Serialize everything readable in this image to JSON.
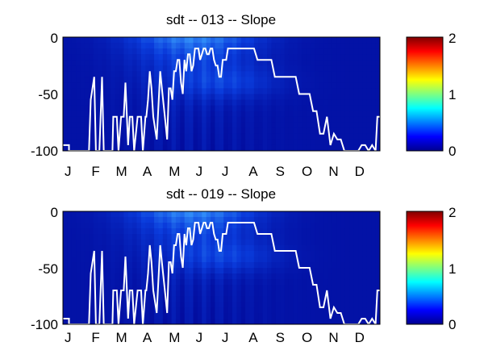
{
  "chart_data": [
    {
      "type": "heatmap",
      "title": "sdt -- 013 -- Slope",
      "x_tick_labels": [
        "J",
        "F",
        "M",
        "A",
        "M",
        "J",
        "J",
        "A",
        "S",
        "O",
        "N",
        "D"
      ],
      "y_tick_labels": [
        "0",
        "-50",
        "-100"
      ],
      "ylim": [
        -100,
        0
      ],
      "colorbar": {
        "range": [
          0,
          2
        ],
        "tick_labels": [
          "2",
          "1",
          "0"
        ],
        "colormap": "jet"
      },
      "grid": false,
      "line_series": {
        "color": "#ffffff",
        "days": [
          0,
          7,
          7,
          30,
          32,
          36,
          38,
          42,
          45,
          47,
          50,
          52,
          57,
          58,
          62,
          64,
          67,
          70,
          72,
          75,
          77,
          80,
          82,
          86,
          90,
          92,
          95,
          96,
          98,
          100,
          102,
          104,
          108,
          112,
          114,
          118,
          120,
          122,
          124,
          126,
          128,
          130,
          132,
          134,
          136,
          138,
          140,
          142,
          144,
          146,
          148,
          150,
          152,
          154,
          156,
          158,
          160,
          162,
          164,
          166,
          168,
          170,
          172,
          174,
          176,
          178,
          180,
          182,
          184,
          186,
          188,
          190,
          192,
          196,
          200,
          204,
          208,
          212,
          216,
          220,
          224,
          228,
          232,
          236,
          240,
          244,
          248,
          252,
          256,
          260,
          264,
          268,
          272,
          276,
          280,
          284,
          288,
          292,
          296,
          300,
          304,
          308,
          312,
          316,
          320,
          324,
          328,
          332,
          336,
          340,
          344,
          348,
          352,
          356,
          360,
          362,
          365
        ],
        "values": [
          -95,
          -95,
          -100,
          -100,
          -55,
          -35,
          -100,
          -100,
          -35,
          -100,
          -100,
          -100,
          -100,
          -70,
          -70,
          -100,
          -70,
          -70,
          -40,
          -95,
          -70,
          -70,
          -100,
          -70,
          -70,
          -100,
          -70,
          -70,
          -55,
          -30,
          -45,
          -70,
          -90,
          -30,
          -45,
          -75,
          -90,
          -45,
          -45,
          -55,
          -30,
          -30,
          -20,
          -20,
          -40,
          -50,
          -20,
          -30,
          -15,
          -15,
          -30,
          -25,
          -10,
          -10,
          -10,
          -20,
          -15,
          -10,
          -10,
          -15,
          -15,
          -10,
          -10,
          -20,
          -25,
          -25,
          -35,
          -35,
          -20,
          -20,
          -20,
          -10,
          -10,
          -10,
          -10,
          -10,
          -10,
          -10,
          -10,
          -10,
          -20,
          -20,
          -20,
          -20,
          -20,
          -35,
          -35,
          -35,
          -35,
          -35,
          -35,
          -35,
          -50,
          -50,
          -50,
          -50,
          -65,
          -65,
          -85,
          -85,
          -70,
          -95,
          -85,
          -90,
          -90,
          -100,
          -100,
          -100,
          -100,
          -100,
          -95,
          -95,
          -100,
          -95,
          -100,
          -70,
          -70
        ]
      }
    },
    {
      "type": "heatmap",
      "title": "sdt -- 019 -- Slope",
      "x_tick_labels": [
        "J",
        "F",
        "M",
        "A",
        "M",
        "J",
        "J",
        "A",
        "S",
        "O",
        "N",
        "D"
      ],
      "y_tick_labels": [
        "0",
        "-50",
        "-100"
      ],
      "ylim": [
        -100,
        0
      ],
      "colorbar": {
        "range": [
          0,
          2
        ],
        "tick_labels": [
          "2",
          "1",
          "0"
        ],
        "colormap": "jet"
      },
      "grid": false,
      "line_series": {
        "color": "#ffffff",
        "days": [
          0,
          7,
          7,
          30,
          32,
          36,
          38,
          42,
          45,
          47,
          50,
          52,
          57,
          58,
          62,
          64,
          67,
          70,
          72,
          75,
          77,
          80,
          82,
          86,
          90,
          92,
          95,
          96,
          98,
          100,
          102,
          104,
          108,
          112,
          114,
          118,
          120,
          122,
          124,
          126,
          128,
          130,
          132,
          134,
          136,
          138,
          140,
          142,
          144,
          146,
          148,
          150,
          152,
          154,
          156,
          158,
          160,
          162,
          164,
          166,
          168,
          170,
          172,
          174,
          176,
          178,
          180,
          182,
          184,
          186,
          188,
          190,
          192,
          196,
          200,
          204,
          208,
          212,
          216,
          220,
          224,
          228,
          232,
          236,
          240,
          244,
          248,
          252,
          256,
          260,
          264,
          268,
          272,
          276,
          280,
          284,
          288,
          292,
          296,
          300,
          304,
          308,
          312,
          316,
          320,
          324,
          328,
          332,
          336,
          340,
          344,
          348,
          352,
          356,
          360,
          362,
          365
        ],
        "values": [
          -95,
          -95,
          -100,
          -100,
          -55,
          -35,
          -100,
          -100,
          -35,
          -100,
          -100,
          -100,
          -100,
          -70,
          -70,
          -100,
          -70,
          -70,
          -40,
          -95,
          -70,
          -70,
          -100,
          -70,
          -70,
          -100,
          -70,
          -70,
          -55,
          -30,
          -45,
          -70,
          -90,
          -30,
          -45,
          -75,
          -90,
          -45,
          -45,
          -55,
          -30,
          -30,
          -20,
          -20,
          -40,
          -50,
          -20,
          -30,
          -15,
          -15,
          -30,
          -25,
          -10,
          -10,
          -10,
          -20,
          -15,
          -10,
          -10,
          -15,
          -15,
          -10,
          -10,
          -20,
          -25,
          -25,
          -35,
          -35,
          -20,
          -20,
          -20,
          -10,
          -10,
          -10,
          -10,
          -10,
          -10,
          -10,
          -10,
          -10,
          -20,
          -20,
          -20,
          -20,
          -20,
          -35,
          -35,
          -35,
          -35,
          -35,
          -35,
          -35,
          -50,
          -50,
          -50,
          -50,
          -65,
          -65,
          -85,
          -85,
          -70,
          -95,
          -85,
          -90,
          -90,
          -100,
          -100,
          -100,
          -100,
          -100,
          -95,
          -95,
          -100,
          -95,
          -100,
          -70,
          -70
        ]
      }
    }
  ],
  "colors": {
    "background": "#ffffff",
    "frame": "#000000",
    "heat_dark": "#00008f",
    "heat_mid": "#0a3cdc",
    "heat_light": "#3aa0ff"
  }
}
